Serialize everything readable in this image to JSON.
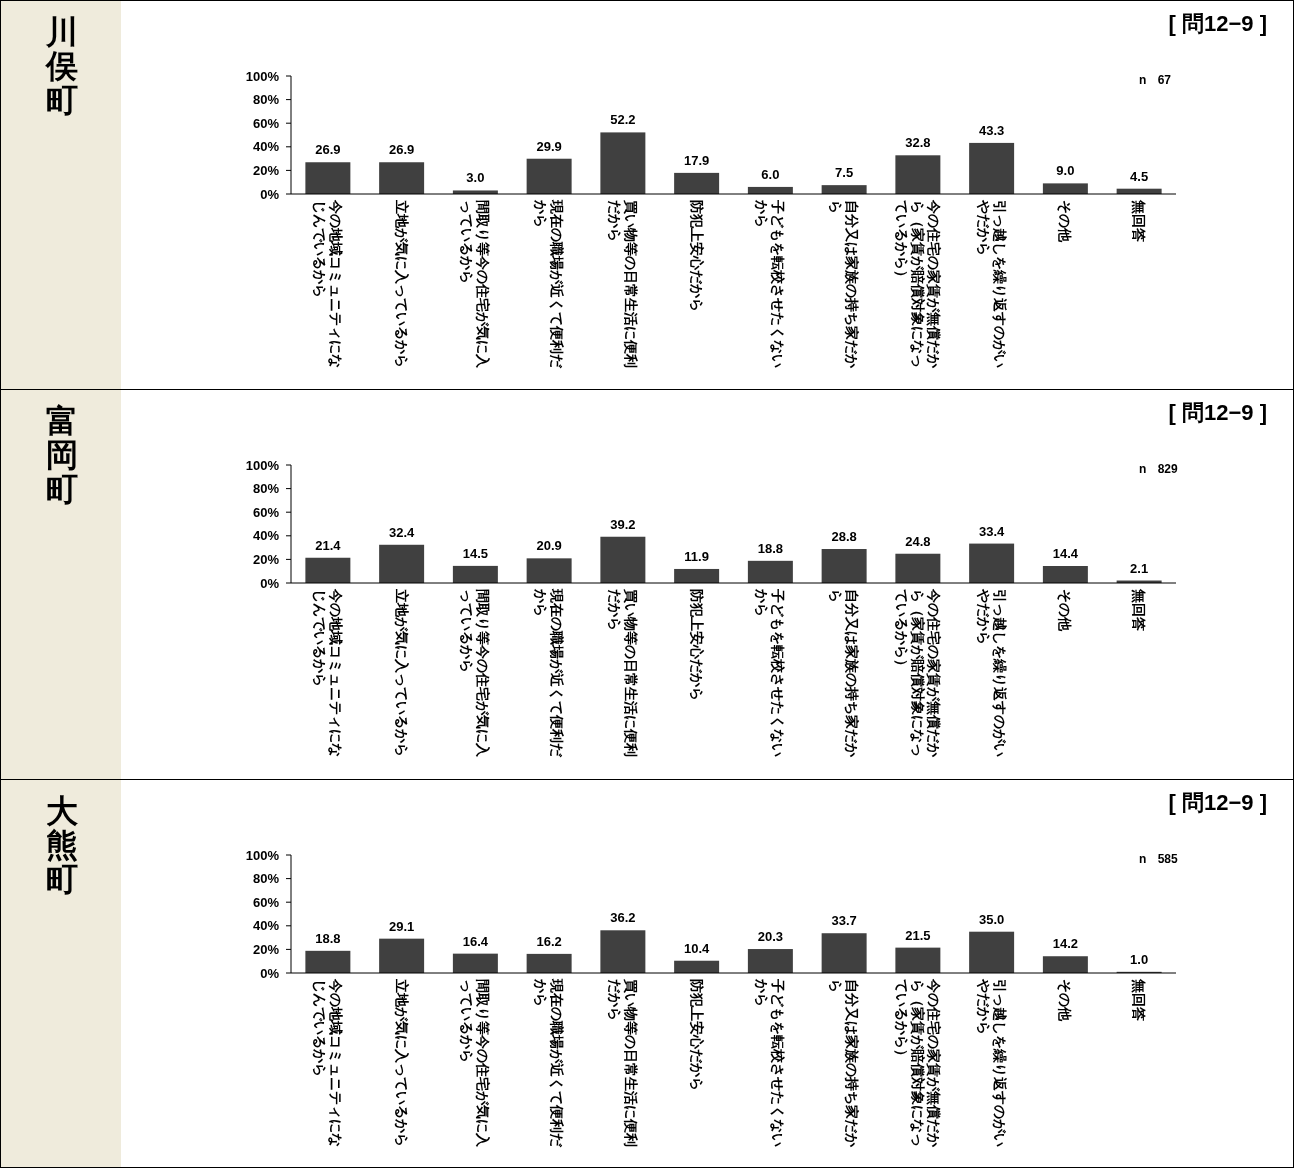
{
  "chart_data": [
    {
      "type": "bar",
      "title": "川俣町",
      "subtitle": "[ 問12−9 ]",
      "annotations": [
        "n 67"
      ],
      "categories": [
        "今の地域コミュニティになじんでいるから",
        "立地が気に入っているから",
        "間取り等今の住宅が気に入っているから",
        "現在の職場が近くて便利だから",
        "買い物等の日常生活に便利だから",
        "防犯上安心だから",
        "子どもを転校させたくないから",
        "自分又は家族の持ち家だから",
        "今の住宅の家賃が無償だから（家賃が賠償対象になっているから）",
        "引っ越しを繰り返すのがいやだから",
        "その他",
        "無回答"
      ],
      "values": [
        26.9,
        26.9,
        3.0,
        29.9,
        52.2,
        17.9,
        6.0,
        7.5,
        32.8,
        43.3,
        9.0,
        4.5
      ],
      "value_labels": [
        "26.9",
        "26.9",
        "3.0",
        "29.9",
        "52.2",
        "17.9",
        "6.0",
        "7.5",
        "32.8",
        "43.3",
        "9.0",
        "4.5"
      ],
      "color": "#404040",
      "ylim": [
        0,
        100
      ],
      "yticks": [
        {
          "value": 0,
          "label": "0%"
        },
        {
          "value": 20,
          "label": "20%"
        },
        {
          "value": 40,
          "label": "40%"
        },
        {
          "value": 60,
          "label": "60%"
        },
        {
          "value": 80,
          "label": "80%"
        },
        {
          "value": 100,
          "label": "100%"
        }
      ]
    },
    {
      "type": "bar",
      "title": "富岡町",
      "subtitle": "[ 問12−9 ]",
      "annotations": [
        "n 829"
      ],
      "categories": [
        "今の地域コミュニティになじんでいるから",
        "立地が気に入っているから",
        "間取り等今の住宅が気に入っているから",
        "現在の職場が近くて便利だから",
        "買い物等の日常生活に便利だから",
        "防犯上安心だから",
        "子どもを転校させたくないから",
        "自分又は家族の持ち家だから",
        "今の住宅の家賃が無償だから（家賃が賠償対象になっているから）",
        "引っ越しを繰り返すのがいやだから",
        "その他",
        "無回答"
      ],
      "values": [
        21.4,
        32.4,
        14.5,
        20.9,
        39.2,
        11.9,
        18.8,
        28.8,
        24.8,
        33.4,
        14.4,
        2.1
      ],
      "value_labels": [
        "21.4",
        "32.4",
        "14.5",
        "20.9",
        "39.2",
        "11.9",
        "18.8",
        "28.8",
        "24.8",
        "33.4",
        "14.4",
        "2.1"
      ],
      "color": "#404040",
      "ylim": [
        0,
        100
      ],
      "yticks": [
        {
          "value": 0,
          "label": "0%"
        },
        {
          "value": 20,
          "label": "20%"
        },
        {
          "value": 40,
          "label": "40%"
        },
        {
          "value": 60,
          "label": "60%"
        },
        {
          "value": 80,
          "label": "80%"
        },
        {
          "value": 100,
          "label": "100%"
        }
      ]
    },
    {
      "type": "bar",
      "title": "大熊町",
      "subtitle": "[ 問12−9 ]",
      "annotations": [
        "n 585"
      ],
      "categories": [
        "今の地域コミュニティになじんでいるから",
        "立地が気に入っているから",
        "間取り等今の住宅が気に入っているから",
        "現在の職場が近くて便利だから",
        "買い物等の日常生活に便利だから",
        "防犯上安心だから",
        "子どもを転校させたくないから",
        "自分又は家族の持ち家だから",
        "今の住宅の家賃が無償だから（家賃が賠償対象になっているから）",
        "引っ越しを繰り返すのがいやだから",
        "その他",
        "無回答"
      ],
      "values": [
        18.8,
        29.1,
        16.4,
        16.2,
        36.2,
        10.4,
        20.3,
        33.7,
        21.5,
        35.0,
        14.2,
        1.0
      ],
      "value_labels": [
        "18.8",
        "29.1",
        "16.4",
        "16.2",
        "36.2",
        "10.4",
        "20.3",
        "33.7",
        "21.5",
        "35.0",
        "14.2",
        "1.0"
      ],
      "color": "#404040",
      "ylim": [
        0,
        100
      ],
      "yticks": [
        {
          "value": 0,
          "label": "0%"
        },
        {
          "value": 20,
          "label": "20%"
        },
        {
          "value": 40,
          "label": "40%"
        },
        {
          "value": 60,
          "label": "60%"
        },
        {
          "value": 80,
          "label": "80%"
        },
        {
          "value": 100,
          "label": "100%"
        }
      ]
    }
  ]
}
